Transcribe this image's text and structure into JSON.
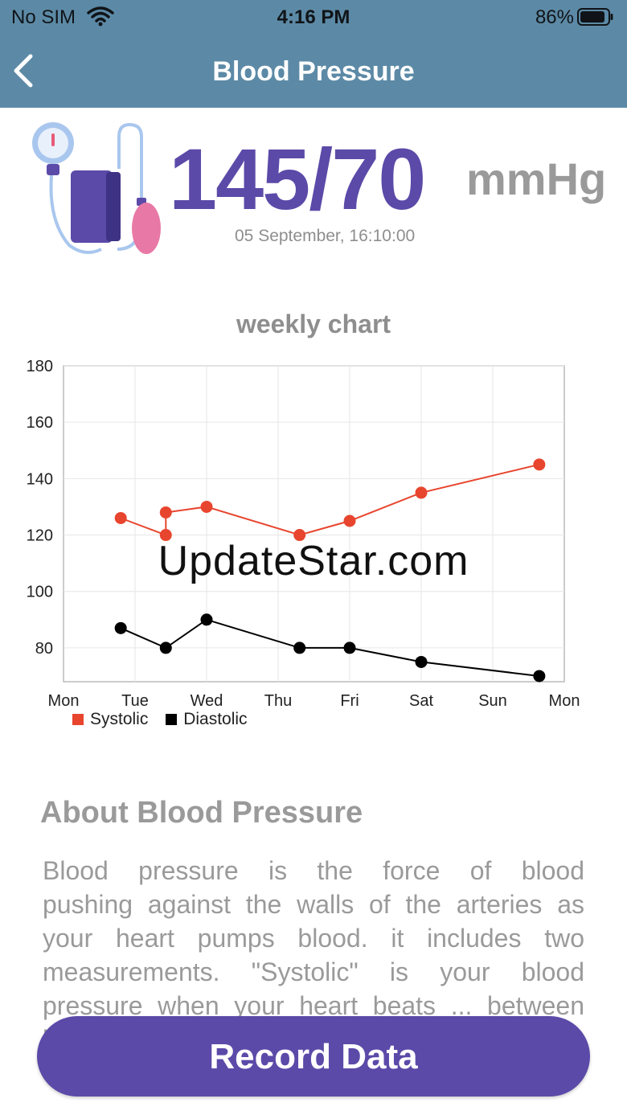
{
  "status_bar": {
    "carrier": "No SIM",
    "time": "4:16 PM",
    "battery_pct": "86%"
  },
  "nav": {
    "title": "Blood Pressure",
    "back_icon": "chevron-left-icon"
  },
  "reading": {
    "value": "145/70",
    "unit": "mmHg",
    "timestamp": "05 September, 16:10:00"
  },
  "chart_title": "weekly chart",
  "chart_data": {
    "type": "line",
    "x_tick_labels": [
      "Mon",
      "Tue",
      "Wed",
      "Thu",
      "Fri",
      "Sat",
      "Sun",
      "Mon"
    ],
    "y_tick_labels": [
      "180",
      "160",
      "140",
      "120",
      "100",
      "80"
    ],
    "ylim": [
      68,
      180
    ],
    "xlim": [
      0,
      7
    ],
    "grid": true,
    "legend_position": "bottom-left",
    "series": [
      {
        "name": "Systolic",
        "color": "#e8452e",
        "x": [
          0.8,
          1.43,
          1.43,
          2.0,
          3.3,
          4.0,
          5.0,
          6.65
        ],
        "y": [
          126,
          120,
          128,
          130,
          120,
          125,
          135,
          145
        ]
      },
      {
        "name": "Diastolic",
        "color": "#000000",
        "x": [
          0.8,
          1.43,
          2.0,
          3.3,
          4.0,
          5.0,
          6.65
        ],
        "y": [
          87,
          80,
          90,
          80,
          80,
          75,
          70
        ]
      }
    ]
  },
  "about": {
    "heading": "About Blood Pressure",
    "text": "Blood pressure is the force of blood pushing against the walls of the arteries as your heart pumps blood. it includes two measurements. \"Systolic\" is your blood pressure when your heart beats ... between beats. You usually see blood"
  },
  "watermark": "UpdateStar.com",
  "record_button": {
    "label": "Record Data"
  },
  "colors": {
    "header": "#5c8aa6",
    "accent": "#5b4aa8",
    "systolic": "#e8452e",
    "diastolic": "#000000"
  }
}
